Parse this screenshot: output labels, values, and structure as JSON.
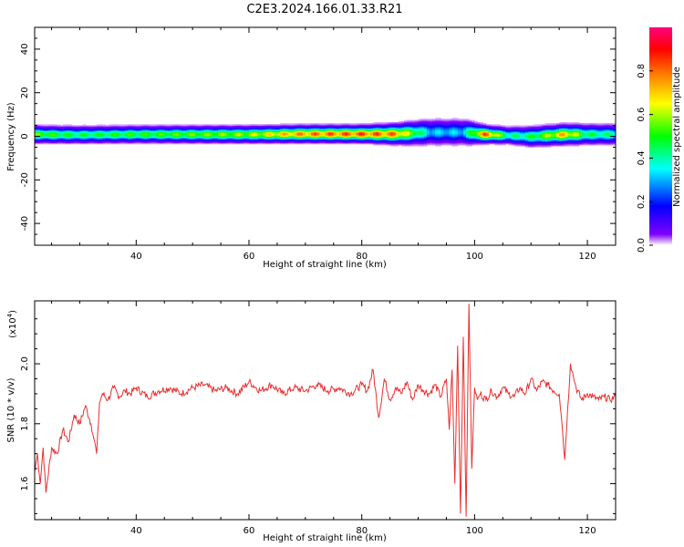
{
  "figure_title": "C2E3.2024.166.01.33.R21",
  "chart_data": [
    {
      "type": "heatmap",
      "xlabel": "Height of straight line (km)",
      "ylabel": "Frequency (Hz)",
      "xlim": [
        22,
        125
      ],
      "ylim": [
        -50,
        50
      ],
      "xticks": [
        40,
        60,
        80,
        100,
        120
      ],
      "yticks": [
        40,
        20,
        0,
        -20,
        -40
      ],
      "grid": false,
      "colorbar": {
        "label": "Normalized spectral amplitude",
        "range": [
          0,
          1
        ],
        "ticks": [
          "0.0",
          "0.2",
          "0.4",
          "0.6",
          "0.8"
        ],
        "colors": [
          "#ffffff",
          "#8000ff",
          "#0000ff",
          "#00ffff",
          "#00ff00",
          "#ffff00",
          "#ff8000",
          "#ff0000",
          "#ff0080"
        ]
      },
      "band_profile": [
        {
          "x": 22,
          "center": 1,
          "halfwidth": 3,
          "peak": 0.6
        },
        {
          "x": 30,
          "center": 0.8,
          "halfwidth": 3,
          "peak": 0.5
        },
        {
          "x": 40,
          "center": 1,
          "halfwidth": 3,
          "peak": 0.55
        },
        {
          "x": 50,
          "center": 1,
          "halfwidth": 3,
          "peak": 0.6
        },
        {
          "x": 60,
          "center": 1,
          "halfwidth": 3,
          "peak": 0.65
        },
        {
          "x": 70,
          "center": 1.2,
          "halfwidth": 3,
          "peak": 0.85
        },
        {
          "x": 80,
          "center": 1.2,
          "halfwidth": 3,
          "peak": 0.9
        },
        {
          "x": 86,
          "center": 1.2,
          "halfwidth": 3.5,
          "peak": 0.85
        },
        {
          "x": 92,
          "center": 2,
          "halfwidth": 4.5,
          "peak": 0.35
        },
        {
          "x": 98,
          "center": 2,
          "halfwidth": 4.5,
          "peak": 0.35
        },
        {
          "x": 102,
          "center": 1,
          "halfwidth": 3,
          "peak": 0.9
        },
        {
          "x": 106,
          "center": 0.5,
          "halfwidth": 3,
          "peak": 0.45
        },
        {
          "x": 110,
          "center": 0,
          "halfwidth": 3.5,
          "peak": 0.5
        },
        {
          "x": 116,
          "center": 1,
          "halfwidth": 3.5,
          "peak": 0.8
        },
        {
          "x": 120,
          "center": 1,
          "halfwidth": 3.5,
          "peak": 0.5
        },
        {
          "x": 125,
          "center": 1,
          "halfwidth": 3.5,
          "peak": 0.45
        }
      ]
    },
    {
      "type": "line",
      "xlabel": "Height of straight line (km)",
      "ylabel": "SNR (10 * v/v)",
      "y_multiplier": "(x10",
      "y_multiplier_exp": "4",
      "y_multiplier_close": ")",
      "xlim": [
        22,
        125
      ],
      "ylim": [
        1.48,
        2.21
      ],
      "xticks": [
        40,
        60,
        80,
        100,
        120
      ],
      "yticks": [
        "1.6",
        "1.8",
        "2.0"
      ],
      "grid": false,
      "series": [
        {
          "color": "#e53030",
          "x": [
            22,
            22.5,
            23,
            23.5,
            24,
            25,
            26,
            27,
            28,
            29,
            30,
            31,
            32,
            32.5,
            33,
            33.5,
            34,
            35,
            36,
            37,
            38,
            39,
            40,
            42,
            44,
            46,
            48,
            50,
            52,
            54,
            56,
            58,
            60,
            62,
            64,
            66,
            68,
            70,
            72,
            74,
            76,
            78,
            80,
            81,
            82,
            83,
            84,
            85,
            86,
            87,
            88,
            89,
            90,
            91,
            92,
            93,
            94,
            95,
            95.5,
            96,
            96.5,
            97,
            97.5,
            98,
            98.5,
            99,
            99.5,
            100,
            100.5,
            101,
            102,
            103,
            104,
            105,
            106,
            107,
            108,
            109,
            110,
            111,
            112,
            113,
            114,
            115,
            115.5,
            116,
            116.5,
            117,
            117.5,
            118,
            119,
            120,
            121,
            122,
            123,
            124,
            125
          ],
          "y": [
            1.64,
            1.7,
            1.6,
            1.72,
            1.57,
            1.72,
            1.7,
            1.78,
            1.74,
            1.83,
            1.8,
            1.86,
            1.8,
            1.75,
            1.7,
            1.87,
            1.9,
            1.88,
            1.92,
            1.89,
            1.91,
            1.9,
            1.92,
            1.89,
            1.91,
            1.92,
            1.9,
            1.92,
            1.93,
            1.91,
            1.92,
            1.9,
            1.94,
            1.91,
            1.93,
            1.9,
            1.92,
            1.91,
            1.93,
            1.91,
            1.92,
            1.9,
            1.93,
            1.91,
            1.98,
            1.82,
            1.95,
            1.88,
            1.92,
            1.9,
            1.94,
            1.88,
            1.93,
            1.91,
            1.9,
            1.93,
            1.89,
            1.95,
            1.78,
            1.98,
            1.6,
            2.06,
            1.5,
            2.09,
            1.49,
            2.2,
            1.65,
            1.92,
            1.88,
            1.9,
            1.88,
            1.91,
            1.89,
            1.92,
            1.9,
            1.89,
            1.92,
            1.9,
            1.95,
            1.91,
            1.94,
            1.93,
            1.91,
            1.9,
            1.8,
            1.68,
            1.85,
            2.0,
            1.96,
            1.92,
            1.88,
            1.9,
            1.89,
            1.88,
            1.89,
            1.88,
            1.89
          ]
        }
      ]
    }
  ]
}
